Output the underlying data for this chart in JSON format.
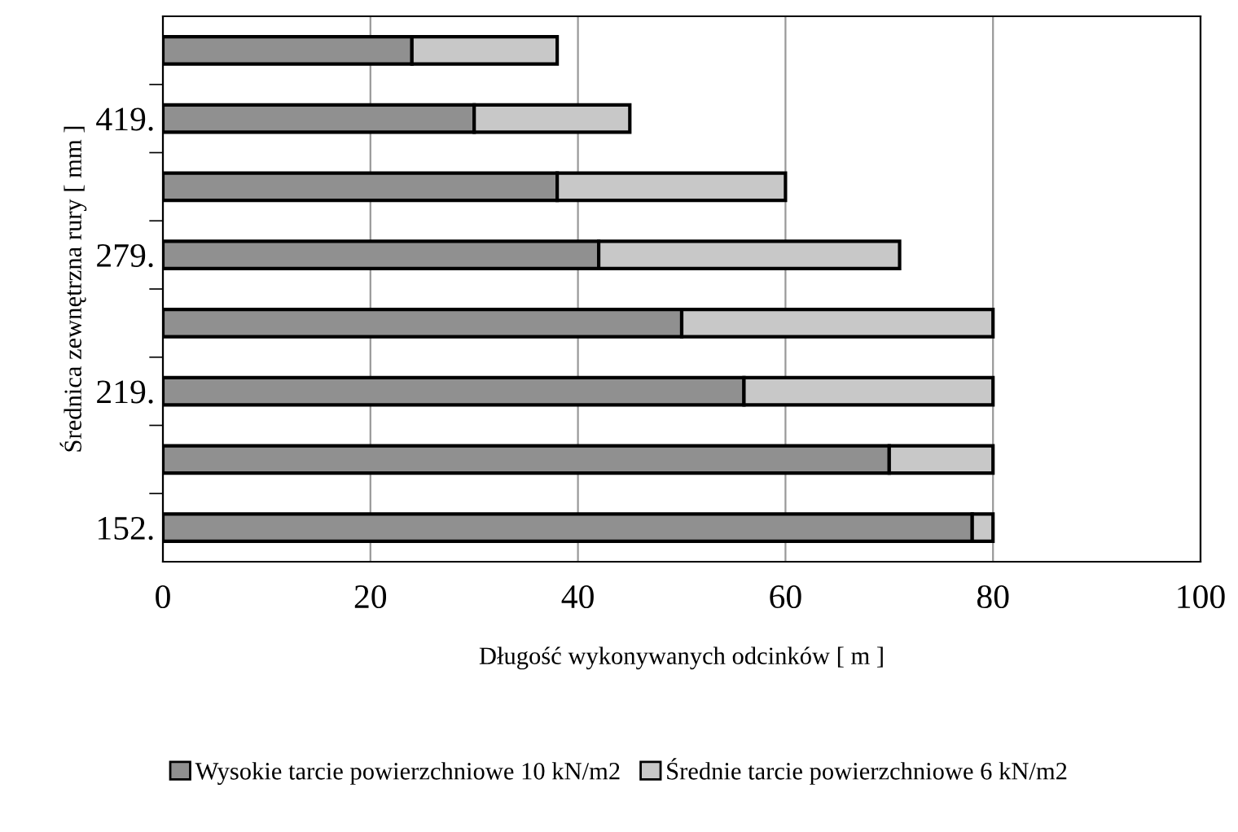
{
  "chart_data": {
    "type": "bar",
    "orientation": "horizontal",
    "stacked": true,
    "categories": [
      null,
      "419.",
      null,
      "279.",
      null,
      "219.",
      null,
      "152."
    ],
    "series": [
      {
        "name": "Wysokie tarcie powierzchniowe 10 kN/m2",
        "color": "#909090",
        "values": [
          24,
          30,
          38,
          42,
          50,
          56,
          70,
          78
        ]
      },
      {
        "name": "Średnie tarcie powierzchniowe 6 kN/m2",
        "color": "#c8c8c8",
        "values": [
          14,
          15,
          22,
          29,
          30,
          24,
          10,
          2
        ]
      }
    ],
    "xlabel": "Długość wykonywanych odcinków [ m ]",
    "ylabel": "Średnica zewnętrzna rury [ mm ]",
    "xlim": [
      0,
      100
    ],
    "xticks": [
      0,
      20,
      40,
      60,
      80,
      100
    ],
    "grid": "x",
    "legend": "bottom"
  }
}
